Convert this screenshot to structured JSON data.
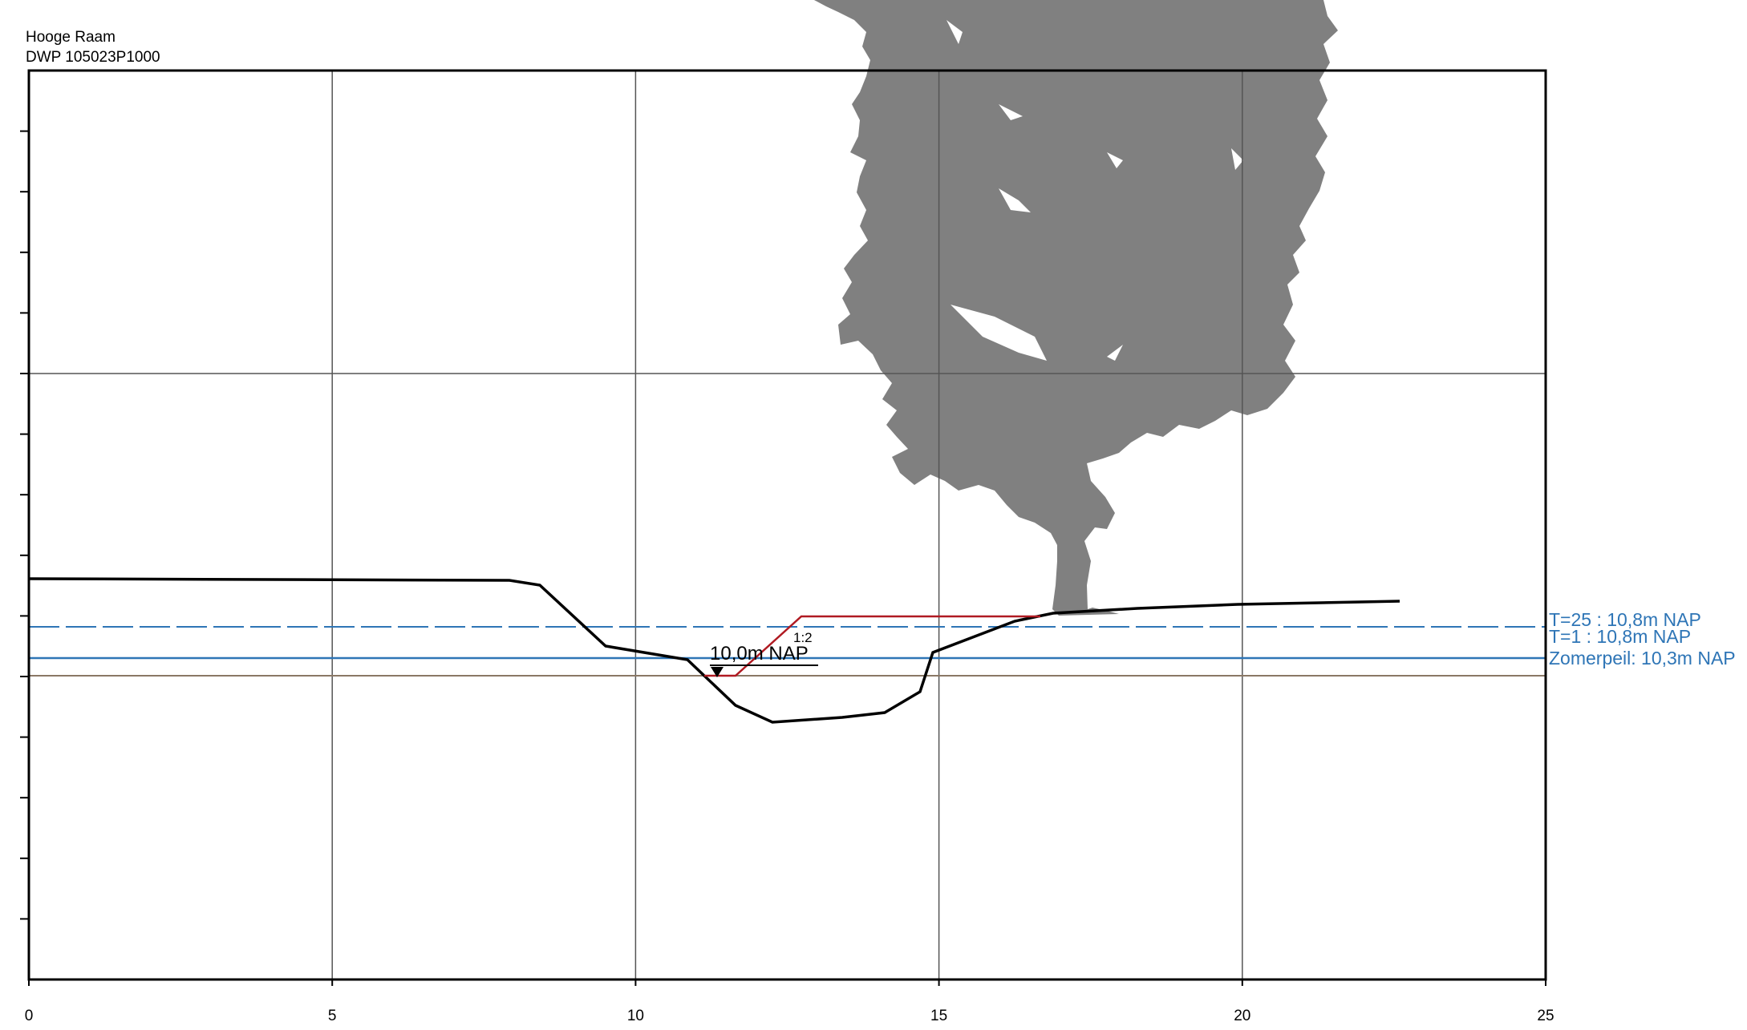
{
  "header": {
    "line1": "Hooge Raam",
    "line2": "DWP 105023P1000"
  },
  "x_axis": {
    "range": [
      0,
      25
    ],
    "major_ticks": [
      0,
      5,
      10,
      15,
      20,
      25
    ],
    "tick_labels": [
      "0",
      "5",
      "10",
      "15",
      "20",
      "25"
    ]
  },
  "y_axis": {
    "minor_tick_count": 15,
    "gridline_at_tick": 5
  },
  "levels": {
    "t25_label": "T=25 : 10,8m NAP",
    "t1_label": "T=1 : 10,8m NAP",
    "zomerpeil_label": "Zomerpeil: 10,3m NAP",
    "design_bottom_label": "10,0m NAP",
    "slope_label": "1:2"
  },
  "colors": {
    "grid": "#555555",
    "existing_profile": "#000000",
    "design_profile": "#b01a22",
    "water_level": "#2e75b6",
    "bottom_level": "#8a7865",
    "tree": "#808080"
  },
  "illustration": {
    "icon": "tree-silhouette-icon"
  }
}
